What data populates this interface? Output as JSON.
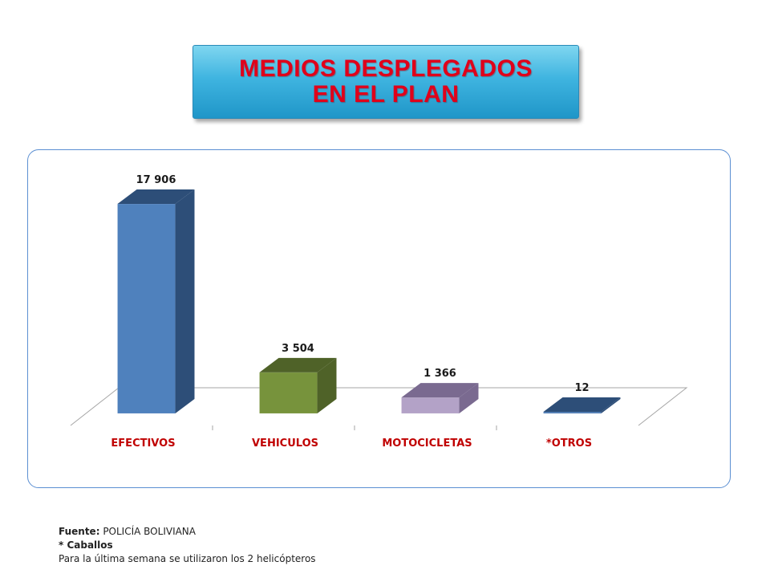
{
  "title": {
    "line1": "MEDIOS DESPLEGADOS",
    "line2": "EN EL PLAN"
  },
  "chart_data": {
    "type": "bar",
    "categories": [
      "EFECTIVOS",
      "VEHICULOS",
      "MOTOCICLETAS",
      "*OTROS"
    ],
    "values": [
      17906,
      3504,
      1366,
      12
    ],
    "data_labels": [
      "17 906",
      "3 504",
      "1 366",
      "12"
    ],
    "colors": {
      "front": [
        "#4f81bd",
        "#77933c",
        "#b3a2c7",
        "#4a78b0"
      ],
      "side": [
        "#2d4e78",
        "#4f6228",
        "#7a6a90",
        "#2d4e78"
      ],
      "top": [
        "#2d4e78",
        "#4f6228",
        "#7a6a90",
        "#2d4e78"
      ],
      "category_label": "#c00000",
      "data_label": "#1a1a1a"
    },
    "ylim": [
      0,
      17906
    ],
    "grid": false,
    "legend": "none"
  },
  "footnote": {
    "source_label": "Fuente:",
    "source_value": " POLICÍA BOLIVIANA",
    "note_bold": "* Caballos",
    "note_text": "Para la última semana se utilizaron los 2 helicópteros"
  }
}
